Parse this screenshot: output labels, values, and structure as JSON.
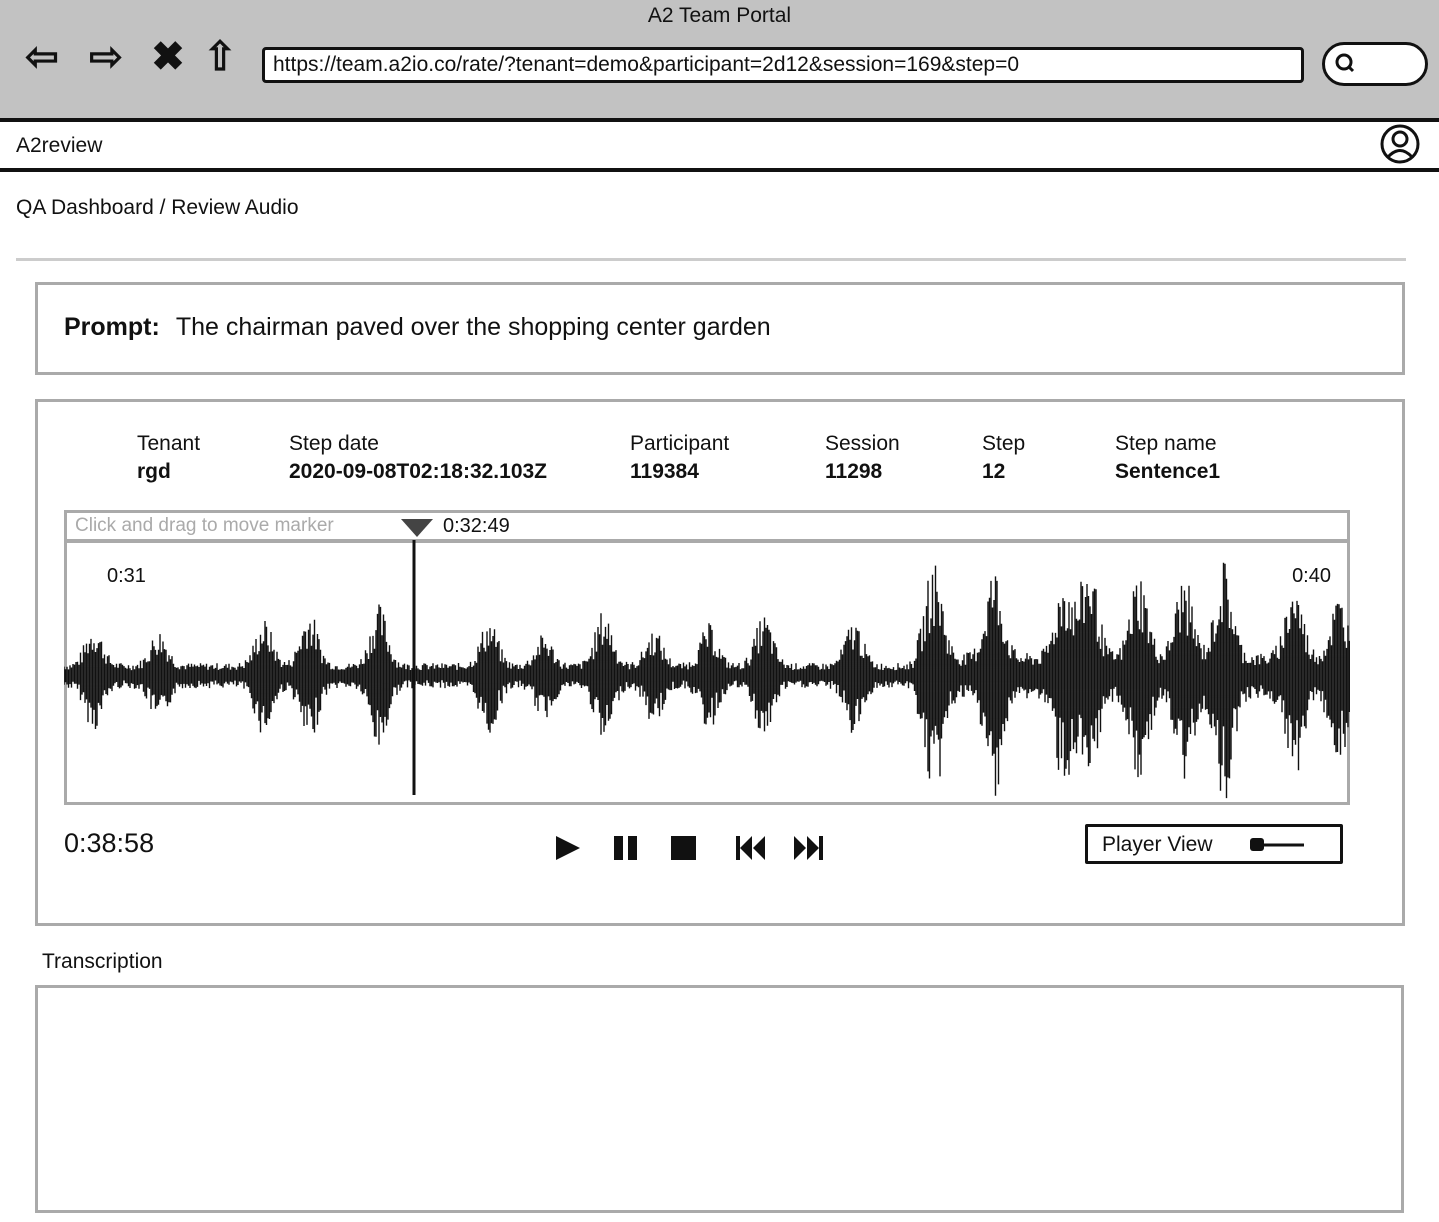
{
  "browser": {
    "title": "A2 Team Portal",
    "url": "https://team.a2io.co/rate/?tenant=demo&participant=2d12&session=169&step=0",
    "icons": [
      "back-arrow-icon",
      "forward-arrow-icon",
      "stop-icon",
      "home-icon",
      "search-icon"
    ]
  },
  "app": {
    "name": "A2review",
    "user_icon": "user-avatar-icon"
  },
  "breadcrumb": "QA Dashboard / Review Audio",
  "prompt": {
    "label": "Prompt:",
    "text": "The chairman paved over the shopping center garden"
  },
  "meta": [
    {
      "label": "Tenant",
      "value": "rgd"
    },
    {
      "label": "Step date",
      "value": "2020-09-08T02:18:32.103Z"
    },
    {
      "label": "Participant",
      "value": "119384"
    },
    {
      "label": "Session",
      "value": "11298"
    },
    {
      "label": "Step",
      "value": "12"
    },
    {
      "label": "Step name",
      "value": "Sentence1"
    }
  ],
  "waveform": {
    "marker_hint": "Click and drag to move marker",
    "marker_time": "0:32:49",
    "start_label": "0:31",
    "end_label": "0:40"
  },
  "player": {
    "current_time": "0:38:58",
    "controls": [
      "play",
      "pause",
      "stop",
      "skip-back",
      "skip-forward"
    ],
    "view_toggle_label": "Player View"
  },
  "transcription": {
    "label": "Transcription",
    "value": ""
  }
}
